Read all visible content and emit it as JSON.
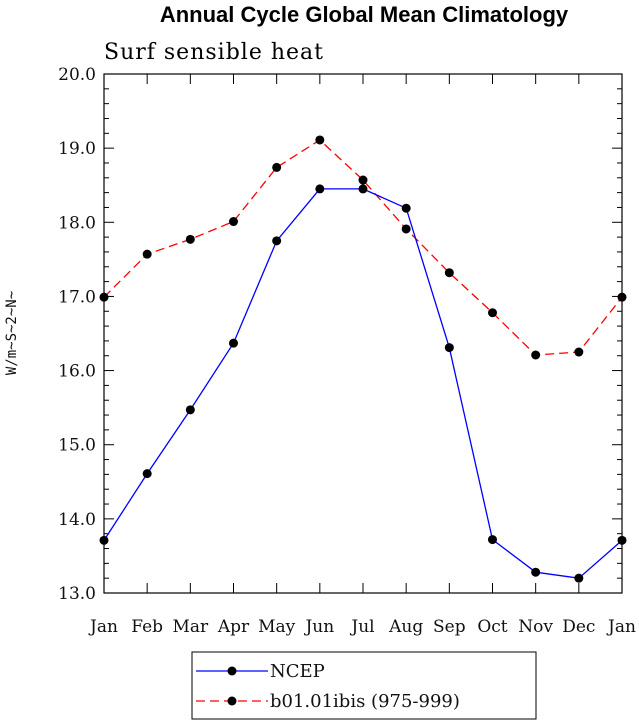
{
  "chart_data": {
    "type": "line",
    "title": "Annual Cycle Global Mean Climatology",
    "subtitle": "Surf sensible heat",
    "ylabel": "W/m~S~2~N~",
    "xlabel": "",
    "categories": [
      "Jan",
      "Feb",
      "Mar",
      "Apr",
      "May",
      "Jun",
      "Jul",
      "Aug",
      "Sep",
      "Oct",
      "Nov",
      "Dec",
      "Jan"
    ],
    "ylim": [
      13.0,
      20.0
    ],
    "yticks": [
      "13.0",
      "14.0",
      "15.0",
      "16.0",
      "17.0",
      "18.0",
      "19.0",
      "20.0"
    ],
    "grid": false,
    "legend_position": "bottom-center",
    "series": [
      {
        "name": "NCEP",
        "color": "#0000ff",
        "line_style": "solid",
        "marker": "filled-circle",
        "values": [
          13.71,
          14.61,
          15.47,
          16.37,
          17.75,
          18.45,
          18.45,
          18.19,
          16.31,
          13.72,
          13.28,
          13.2,
          13.71
        ]
      },
      {
        "name": "b01.01ibis (975-999)",
        "color": "#ff0000",
        "line_style": "dashed",
        "marker": "filled-circle",
        "values": [
          16.99,
          17.57,
          17.77,
          18.01,
          18.74,
          19.11,
          18.57,
          17.91,
          17.32,
          16.78,
          16.21,
          16.25,
          16.99
        ]
      }
    ]
  }
}
